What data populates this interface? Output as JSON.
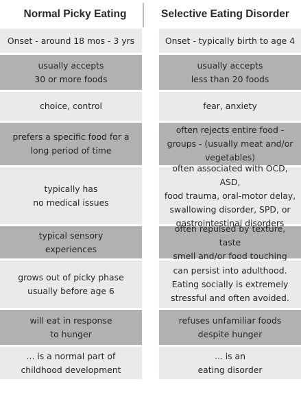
{
  "headers": [
    "Normal Picky Eating",
    "Selective Eating Disorder"
  ],
  "rows": [
    {
      "shade": "light",
      "left": [
        "Onset - around 18 mos - 3 yrs"
      ],
      "right": [
        "Onset - typically birth to age 4"
      ]
    },
    {
      "shade": "dark",
      "left": [
        "usually accepts",
        "30 or more foods"
      ],
      "right": [
        "usually accepts",
        "less than 20 foods"
      ]
    },
    {
      "shade": "light",
      "left": [
        "choice, control"
      ],
      "right": [
        "fear, anxiety"
      ]
    },
    {
      "shade": "dark",
      "left": [
        "prefers a specific food for a",
        "long period of time"
      ],
      "right": [
        "often rejects entire food -",
        "groups - (usually meat and/or",
        "vegetables)"
      ]
    },
    {
      "shade": "light",
      "left": [
        "typically has",
        "no medical issues"
      ],
      "right": [
        "often associated with OCD, ASD,",
        "food trauma, oral-motor delay,",
        "swallowing disorder, SPD, or",
        "gastrointestinal disorders"
      ]
    },
    {
      "shade": "dark",
      "left": [
        "typical sensory",
        "experiences"
      ],
      "right": [
        "often repulsed by texture, taste",
        "smell and/or food touching"
      ]
    },
    {
      "shade": "light",
      "left": [
        "grows out of picky phase",
        "usually before age 6"
      ],
      "right": [
        "can persist into adulthood.",
        "Eating socially is extremely",
        "stressful and often avoided."
      ]
    },
    {
      "shade": "dark",
      "left": [
        "will eat in response",
        "to hunger"
      ],
      "right": [
        "refuses unfamiliar foods",
        "despite hunger"
      ]
    },
    {
      "shade": "light",
      "left": [
        "... is a normal part of",
        "childhood development"
      ],
      "right": [
        "... is an",
        "eating disorder"
      ]
    }
  ]
}
